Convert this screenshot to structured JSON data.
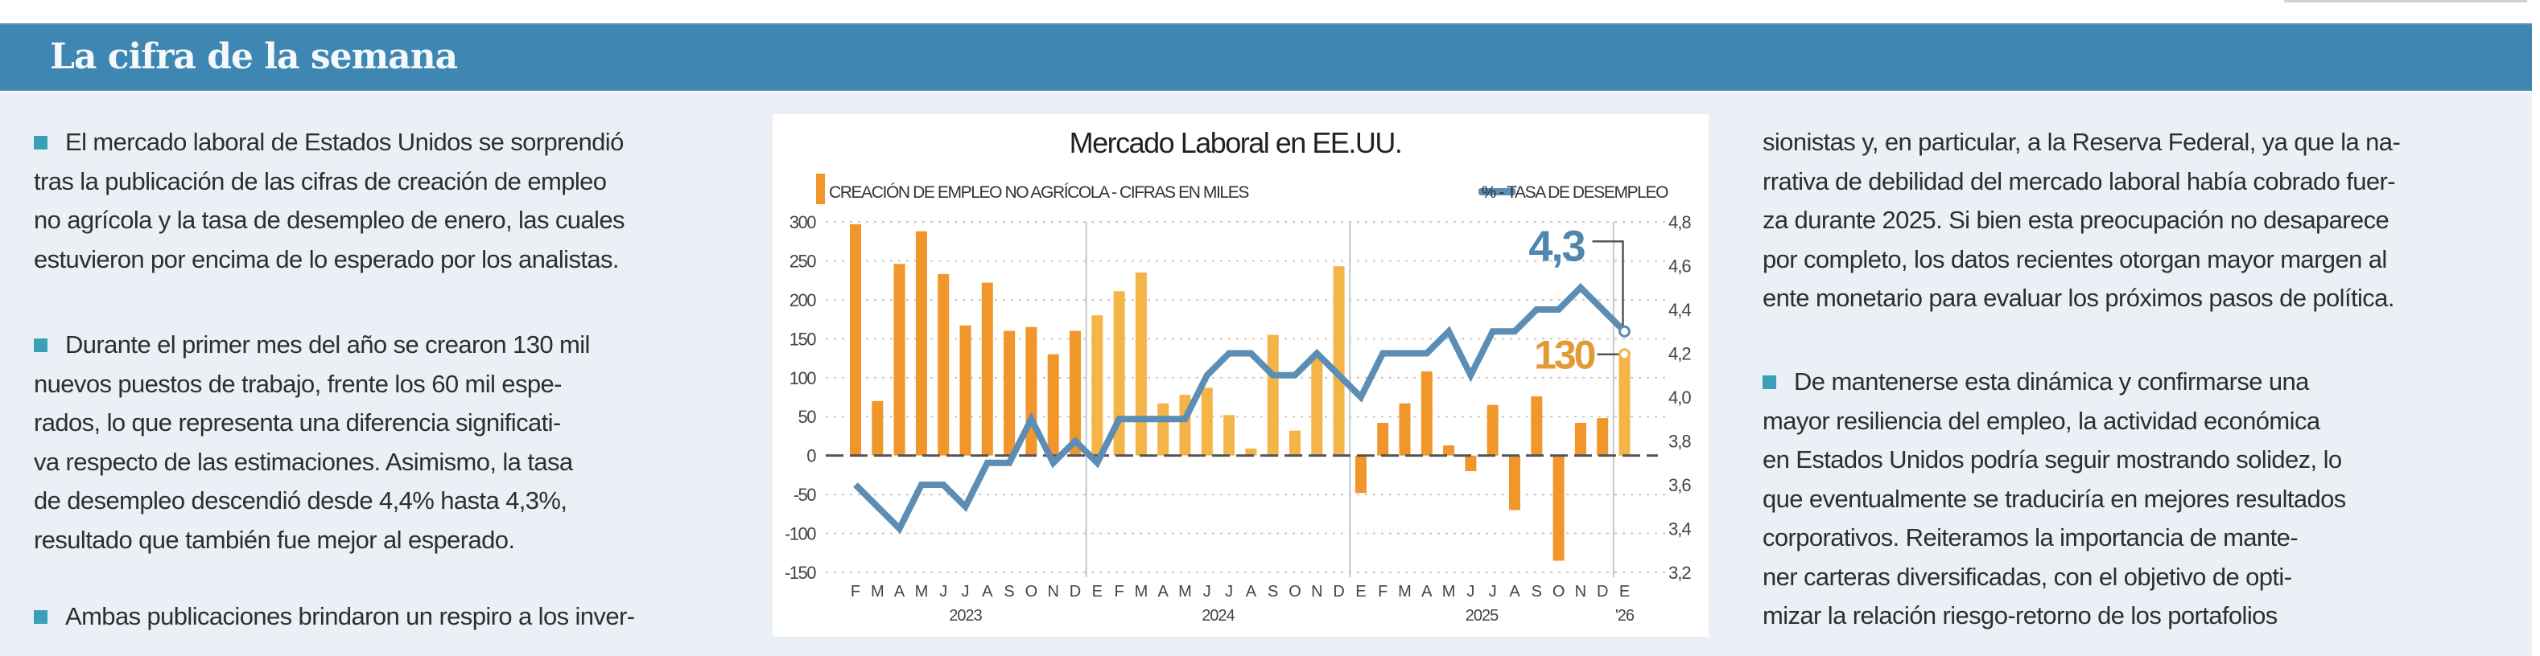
{
  "header": {
    "title": "La cifra de la semana"
  },
  "left_column": {
    "paragraphs": [
      [
        "El mercado laboral de Estados Unidos se sorprendió",
        "tras la publicación de las cifras de creación de empleo",
        "no agrícola y la tasa de desempleo de enero, las cuales",
        "estuvieron por encima de lo esperado por los analistas."
      ],
      [
        "Durante el primer mes del año se crearon 130 mil",
        "nuevos puestos de trabajo, frente los 60 mil espe-",
        "rados, lo que representa una diferencia significati-",
        "va respecto de las estimaciones. Asimismo, la tasa",
        "de desempleo descendió desde 4,4% hasta 4,3%,",
        "resultado que también fue mejor al esperado."
      ],
      [
        "Ambas publicaciones brindaron un respiro a los inver-"
      ]
    ]
  },
  "right_column": {
    "paragraphs": [
      [
        "sionistas y, en particular, a la Reserva Federal, ya que la na-",
        "rrativa de debilidad del mercado laboral había cobrado fuer-",
        "za durante 2025. Si bien esta preocupación no desaparece",
        "por completo, los datos recientes otorgan mayor margen al",
        "ente monetario para evaluar los próximos pasos de política."
      ],
      [
        "De mantenerse esta dinámica y confirmarse una",
        "mayor resiliencia del empleo, la actividad económica",
        "en Estados Unidos podría seguir mostrando solidez, lo",
        "que eventualmente se traduciría en mejores resultados",
        "corporativos. Reiteramos la importancia de mante-",
        "ner carteras diversificadas, con el objetivo de opti-",
        "mizar la relación riesgo-retorno de los portafolios"
      ]
    ]
  },
  "colors": {
    "banner": "#3f87b3",
    "bullet": "#3aa0b8",
    "bar_dark": "#f0962a",
    "bar_light": "#f4b448",
    "line": "#5b8db5",
    "label_130": "#e29a35",
    "label_43": "#4f86ad"
  },
  "chart_data": {
    "type": "bar+line",
    "title": "Mercado Laboral en EE.UU.",
    "legend": [
      {
        "name": "CREACIÓN DE EMPLEO NO AGRÍCOLA - CIFRAS EN MILES",
        "kind": "bar",
        "position": "top-left"
      },
      {
        "name": "% - TASA DE DESEMPLEO",
        "kind": "line",
        "position": "top-right"
      }
    ],
    "x_month_labels": [
      "F",
      "M",
      "A",
      "M",
      "J",
      "J",
      "A",
      "S",
      "O",
      "N",
      "D",
      "E",
      "F",
      "M",
      "A",
      "M",
      "J",
      "J",
      "A",
      "S",
      "O",
      "N",
      "D",
      "E",
      "F",
      "M",
      "A",
      "M",
      "J",
      "J",
      "A",
      "S",
      "O",
      "N",
      "D",
      "E"
    ],
    "x_year_labels": [
      {
        "label": "2023",
        "center_index": 5
      },
      {
        "label": "2024",
        "center_index": 16.5
      },
      {
        "label": "2025",
        "center_index": 28.5
      },
      {
        "label": "'26",
        "center_index": 35
      }
    ],
    "year_groups": [
      0,
      0,
      0,
      0,
      0,
      0,
      0,
      0,
      0,
      0,
      0,
      1,
      1,
      1,
      1,
      1,
      1,
      1,
      1,
      1,
      1,
      1,
      1,
      2,
      2,
      2,
      2,
      2,
      2,
      2,
      2,
      2,
      2,
      2,
      2,
      3
    ],
    "series": [
      {
        "name": "CREACIÓN DE EMPLEO NO AGRÍCOLA - CIFRAS EN MILES",
        "axis": "left",
        "values": [
          297,
          70,
          246,
          288,
          233,
          167,
          222,
          160,
          165,
          130,
          160,
          180,
          211,
          235,
          67,
          78,
          87,
          52,
          9,
          155,
          32,
          125,
          243,
          -48,
          42,
          67,
          108,
          13,
          -20,
          65,
          -70,
          76,
          -135,
          42,
          48,
          130
        ]
      },
      {
        "name": "% - TASA DE DESEMPLEO",
        "axis": "right",
        "values": [
          3.6,
          3.5,
          3.4,
          3.6,
          3.6,
          3.5,
          3.7,
          3.7,
          3.9,
          3.7,
          3.8,
          3.7,
          3.9,
          3.9,
          3.9,
          3.9,
          4.1,
          4.2,
          4.2,
          4.1,
          4.1,
          4.2,
          4.1,
          4.0,
          4.2,
          4.2,
          4.2,
          4.3,
          4.1,
          4.3,
          4.3,
          4.4,
          4.4,
          4.5,
          4.4,
          4.3
        ]
      }
    ],
    "left_axis": {
      "ylim": [
        -150,
        300
      ],
      "ticks": [
        "300",
        "250",
        "200",
        "150",
        "100",
        "50",
        "0",
        "-50",
        "-100",
        "-150"
      ],
      "tick_values": [
        300,
        250,
        200,
        150,
        100,
        50,
        0,
        -50,
        -100,
        -150
      ]
    },
    "right_axis": {
      "ylim": [
        3.2,
        4.8
      ],
      "ticks": [
        "4,8",
        "4,6",
        "4,4",
        "4,2",
        "4,0",
        "3,8",
        "3,6",
        "3,4",
        "3,2"
      ]
    },
    "annotations": [
      {
        "text": "4,3",
        "series": "% - TASA DE DESEMPLEO",
        "index": 35
      },
      {
        "text": "130",
        "series": "CREACIÓN DE EMPLEO NO AGRÍCOLA - CIFRAS EN MILES",
        "index": 35
      }
    ],
    "grid": "dotted-horizontal"
  }
}
